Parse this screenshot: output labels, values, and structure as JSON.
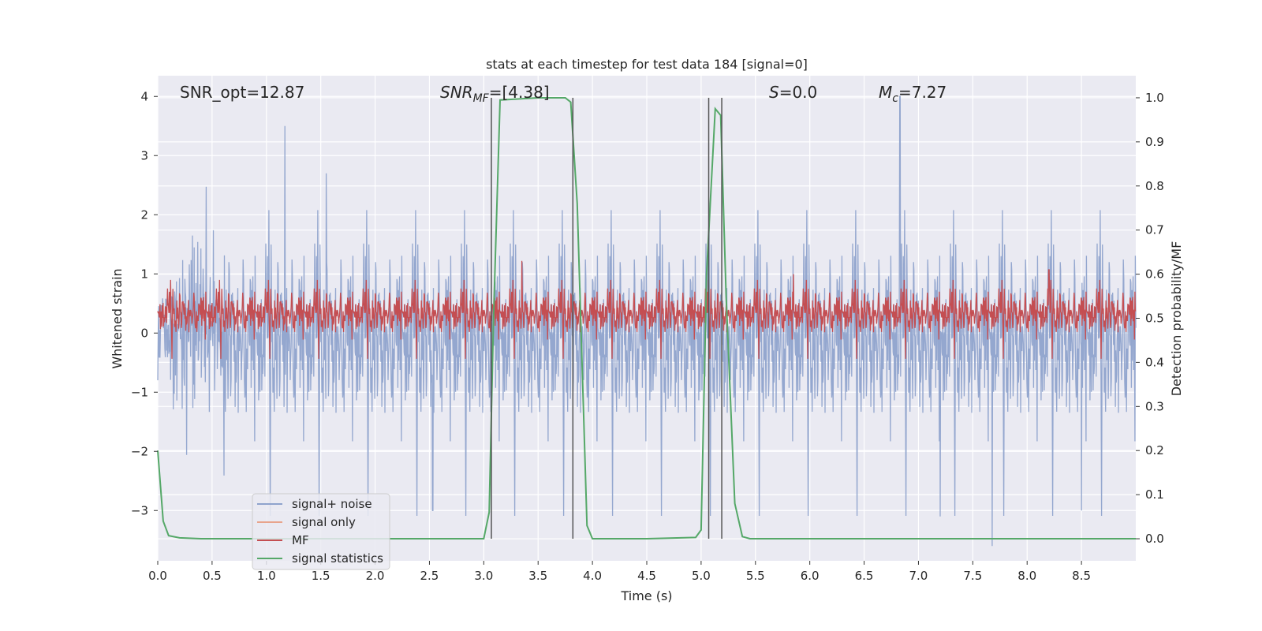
{
  "chart_data": {
    "type": "line",
    "title": "stats at each timestep for test data 184 [signal=0]",
    "xlabel": "Time (s)",
    "ylabel": "Whitened strain",
    "y2label": "Detection probability/MF",
    "xlim": [
      0,
      9.0
    ],
    "ylim": [
      -3.85,
      4.35
    ],
    "y2lim": [
      -0.05,
      1.05
    ],
    "grid": true,
    "x_ticks": [
      "0.0",
      "0.5",
      "1.0",
      "1.5",
      "2.0",
      "2.5",
      "3.0",
      "3.5",
      "4.0",
      "4.5",
      "5.0",
      "5.5",
      "6.0",
      "6.5",
      "7.0",
      "7.5",
      "8.0",
      "8.5"
    ],
    "y_ticks": [
      "4",
      "3",
      "2",
      "1",
      "0",
      "−1",
      "−2",
      "−3"
    ],
    "y2_ticks": [
      "1.0",
      "0.9",
      "0.8",
      "0.7",
      "0.6",
      "0.5",
      "0.4",
      "0.3",
      "0.2",
      "0.1",
      "0.0"
    ],
    "annotations": {
      "snr_opt": "SNR_opt=12.87",
      "snr_mf_main": "SNR",
      "snr_mf_sub": "MF",
      "snr_mf_tail": "=[4.38]",
      "s_main": "S",
      "s_tail": "=0.0",
      "mc_main": "M",
      "mc_sub": "c",
      "mc_tail": "=7.27"
    },
    "series": [
      {
        "name": "signal+ noise",
        "color": "#8fa3cc",
        "axis": "left",
        "style": "noise",
        "band": [
          -1.3,
          1.3
        ],
        "peaks": [
          [
            1.17,
            3.5
          ],
          [
            6.83,
            4.0
          ],
          [
            7.68,
            -3.6
          ],
          [
            2.53,
            -3.0
          ],
          [
            8.5,
            -3.0
          ],
          [
            1.55,
            2.7
          ],
          [
            7.2,
            -3.1
          ]
        ]
      },
      {
        "name": "signal only",
        "color": "#e8a48c",
        "axis": "left",
        "values": []
      },
      {
        "name": "MF",
        "color": "#c44e52",
        "axis": "right",
        "style": "noise",
        "band": [
          0.47,
          0.56
        ],
        "peaks": [
          [
            3.35,
            0.63
          ],
          [
            5.85,
            0.6
          ],
          [
            8.2,
            0.61
          ]
        ]
      },
      {
        "name": "signal statistics",
        "color": "#55a868",
        "axis": "right",
        "x": [
          0.0,
          0.05,
          0.1,
          0.2,
          0.4,
          1.0,
          2.0,
          3.0,
          3.05,
          3.09,
          3.15,
          3.5,
          3.75,
          3.8,
          3.86,
          3.95,
          4.0,
          4.5,
          4.95,
          5.0,
          5.05,
          5.13,
          5.18,
          5.23,
          5.31,
          5.38,
          5.45,
          6.0,
          7.0,
          8.0,
          9.0
        ],
        "values": [
          0.2,
          0.04,
          0.007,
          0.002,
          0.0,
          0.0,
          0.0,
          0.0,
          0.06,
          0.5,
          0.995,
          1.0,
          1.0,
          0.99,
          0.76,
          0.03,
          0.0,
          0.0,
          0.003,
          0.02,
          0.6,
          0.975,
          0.96,
          0.55,
          0.08,
          0.005,
          0.0,
          0.0,
          0.0,
          0.0,
          0.0
        ]
      }
    ],
    "vlines": [
      3.07,
      3.82,
      5.07,
      5.19
    ],
    "vline_range": [
      0.0,
      1.0
    ]
  },
  "legend": {
    "items": [
      {
        "label": "signal+ noise",
        "color": "#8fa3cc"
      },
      {
        "label": "signal only",
        "color": "#e8a48c"
      },
      {
        "label": "MF",
        "color": "#c44e52"
      },
      {
        "label": "signal statistics",
        "color": "#55a868"
      }
    ]
  },
  "colors": {
    "plot_bg": "#eaeaf2",
    "grid": "#ffffff",
    "vline": "#555555"
  }
}
